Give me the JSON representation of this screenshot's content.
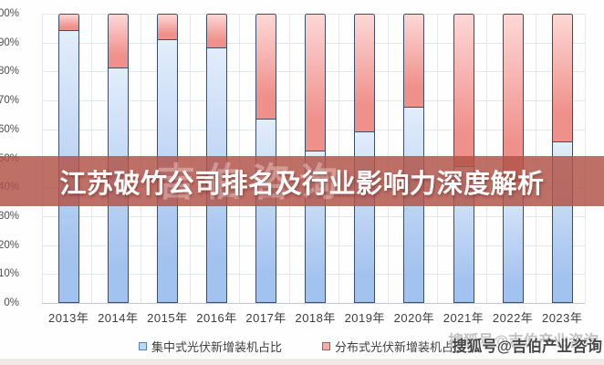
{
  "banner": {
    "title": "江苏破竹公司排名及行业影响力深度解析",
    "bg_color": "#b1544a",
    "text_color": "#ffffff"
  },
  "watermark": {
    "dark_text": "搜狐号@吉伯产业咨询",
    "light_text": "搜狐号@吉伯产业咨询",
    "ghost_text": "吉伯咨询"
  },
  "chart_data": {
    "type": "bar",
    "stacked": true,
    "orientation": "vertical",
    "categories": [
      "2013年",
      "2014年",
      "2015年",
      "2016年",
      "2017年",
      "2018年",
      "2019年",
      "2020年",
      "2021年",
      "2022年",
      "2023年"
    ],
    "series": [
      {
        "name": "集中式光伏新增装机占比",
        "values": [
          94,
          81,
          91,
          88,
          63.5,
          52.5,
          59,
          67.5,
          47,
          42,
          55.5
        ],
        "fill_top": "#e3edfb",
        "fill_bottom": "#a2c2ef",
        "border": "#3d4e6b",
        "legend_swatch_fill": "#bdd7f3",
        "legend_swatch_border": "#4f81bd"
      },
      {
        "name": "分布式光伏新增装机占比",
        "values": [
          6,
          19,
          9,
          12,
          36.5,
          47.5,
          41,
          32.5,
          53,
          58,
          44.5
        ],
        "fill_top": "#fdd8d6",
        "fill_bottom": "#f0908b",
        "border": "#3d4e6b",
        "legend_swatch_fill": "#f2b0ad",
        "legend_swatch_border": "#c0504d"
      }
    ],
    "yticks": [
      "100%",
      "90%",
      "80%",
      "70%",
      "60%",
      "50%",
      "40%",
      "30%",
      "20%",
      "10%",
      "0%"
    ],
    "ylim": [
      0,
      100
    ],
    "grid": "horizontal and vertical category separators",
    "legend_position": "bottom-center",
    "note": "stacked percentage bars; second series plotted on top of first, totals 100%"
  }
}
